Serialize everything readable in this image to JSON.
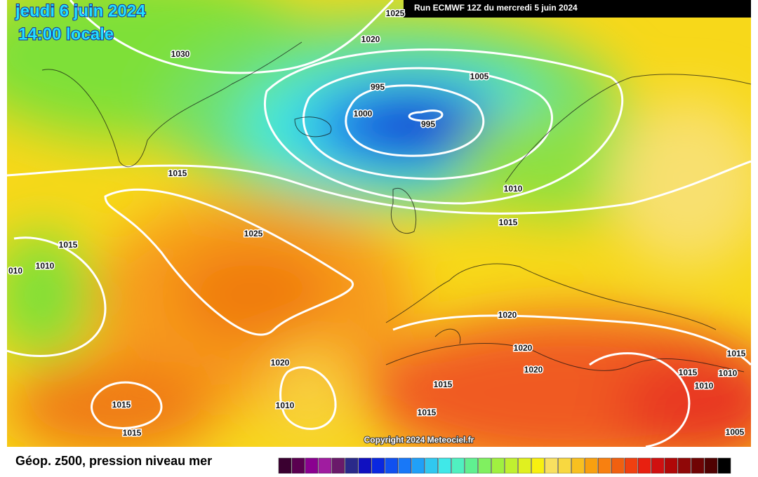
{
  "header": {
    "date": "jeudi 6 juin 2024",
    "time": "14:00 locale",
    "run": "Run ECMWF 12Z du mercredi 5 juin 2024"
  },
  "isobar_labels": [
    "1025",
    "1020",
    "1030",
    "1005",
    "995",
    "1000",
    "995",
    "1015",
    "1010",
    "1015",
    "1025",
    "1015",
    "1010",
    "010",
    "1020",
    "1020",
    "1020",
    "1020",
    "1015",
    "1015",
    "1015",
    "1010",
    "1010",
    "1015",
    "1010",
    "1015",
    "1015",
    "1005"
  ],
  "footer": {
    "title": "Géop. z500, pression niveau mer",
    "copyright": "Copyright 2024 Meteociel.fr"
  }
}
